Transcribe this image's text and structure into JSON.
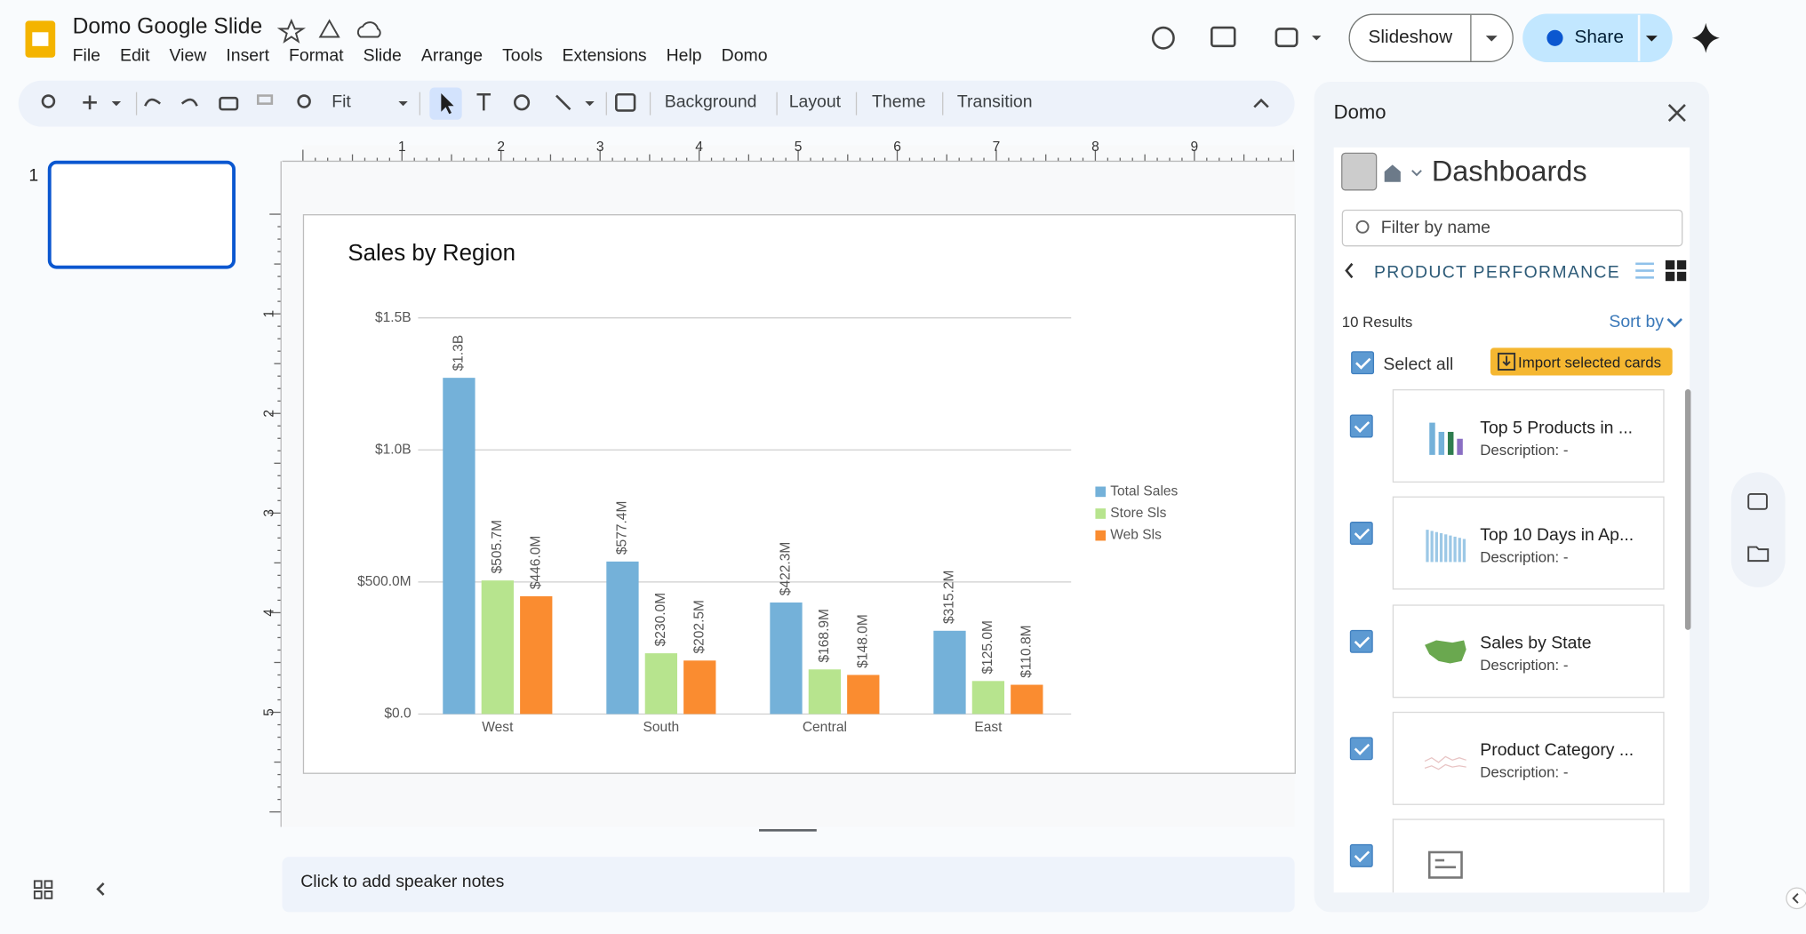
{
  "app": {
    "title": "Domo Google Slide",
    "menu": [
      "File",
      "Edit",
      "View",
      "Insert",
      "Format",
      "Slide",
      "Arrange",
      "Tools",
      "Extensions",
      "Help",
      "Domo"
    ],
    "zoom": "Fit",
    "toolbar_buttons": [
      "Background",
      "Layout",
      "Theme",
      "Transition"
    ],
    "slideshow": "Slideshow",
    "share": "Share",
    "slide_number": "1",
    "ruler": {
      "h": [
        1,
        2,
        3,
        4,
        5,
        6,
        7,
        8,
        9
      ],
      "v": [
        1,
        2,
        3,
        4,
        5
      ]
    },
    "speaker_notes": "Click to add speaker notes"
  },
  "panel": {
    "title": "Domo",
    "section": "Dashboards",
    "filter_placeholder": "Filter by name",
    "page": "PRODUCT PERFORMANCE",
    "results": "10 Results",
    "sort": "Sort by",
    "select_all": "Select all",
    "import": "Import selected cards",
    "cards": [
      {
        "title": "Top 5 Products in ...",
        "description": "Description: -"
      },
      {
        "title": "Top 10 Days in Ap...",
        "description": "Description: -"
      },
      {
        "title": "Sales by State",
        "description": "Description: -"
      },
      {
        "title": "Product Category ...",
        "description": "Description: -"
      }
    ]
  },
  "chart_data": {
    "type": "bar",
    "title": "Sales by Region",
    "categories": [
      "West",
      "South",
      "Central",
      "East"
    ],
    "series": [
      {
        "name": "Total Sales",
        "color": "#74b1d9",
        "values": [
          1273000000,
          577400000,
          422300000,
          315200000
        ],
        "value_labels": [
          "$1.3B",
          "$577.4M",
          "$422.3M",
          "$315.2M"
        ]
      },
      {
        "name": "Store Sls",
        "color": "#b7e48e",
        "values": [
          505700000,
          230000000,
          168900000,
          125000000
        ],
        "value_labels": [
          "$505.7M",
          "$230.0M",
          "$168.9M",
          "$125.0M"
        ]
      },
      {
        "name": "Web Sls",
        "color": "#fa8c30",
        "values": [
          446000000,
          202500000,
          148000000,
          110800000
        ],
        "value_labels": [
          "$446.0M",
          "$202.5M",
          "$148.0M",
          "$110.8M"
        ]
      }
    ],
    "ylim": [
      0,
      1500000000
    ],
    "yticks": [
      {
        "value": 0,
        "label": "$0.0"
      },
      {
        "value": 500000000,
        "label": "$500.0M"
      },
      {
        "value": 1000000000,
        "label": "$1.0B"
      },
      {
        "value": 1500000000,
        "label": "$1.5B"
      }
    ],
    "grid": true,
    "legend": "right"
  }
}
